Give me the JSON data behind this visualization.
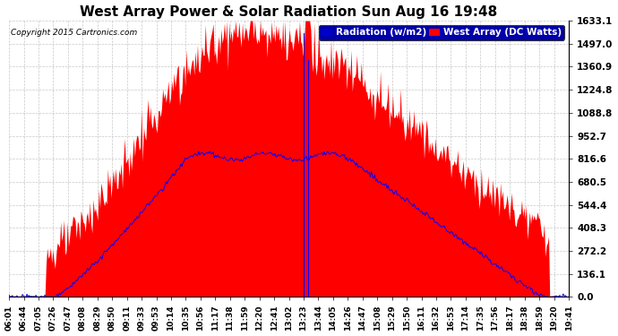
{
  "title": "West Array Power & Solar Radiation Sun Aug 16 19:48",
  "copyright": "Copyright 2015 Cartronics.com",
  "legend_labels": [
    "Radiation (w/m2)",
    "West Array (DC Watts)"
  ],
  "legend_colors": [
    "#0000ff",
    "#ff0000"
  ],
  "background_color": "#ffffff",
  "plot_bg_color": "#ffffff",
  "grid_color": "#c8c8c8",
  "yticks": [
    0.0,
    136.1,
    272.2,
    408.3,
    544.4,
    680.5,
    816.6,
    952.7,
    1088.8,
    1224.8,
    1360.9,
    1497.0,
    1633.1
  ],
  "ymax": 1633.1,
  "ymin": 0.0,
  "fill_color": "#ff0000",
  "line_color": "#0000ff",
  "num_points": 500,
  "xtick_labels": [
    "06:01",
    "06:44",
    "07:05",
    "07:26",
    "07:47",
    "08:08",
    "08:29",
    "08:50",
    "09:11",
    "09:33",
    "09:53",
    "10:14",
    "10:35",
    "10:56",
    "11:17",
    "11:38",
    "11:59",
    "12:20",
    "12:41",
    "13:02",
    "13:23",
    "13:44",
    "14:05",
    "14:26",
    "14:47",
    "15:08",
    "15:29",
    "15:50",
    "16:11",
    "16:32",
    "16:53",
    "17:14",
    "17:35",
    "17:56",
    "18:17",
    "18:38",
    "18:59",
    "19:20",
    "19:41"
  ]
}
